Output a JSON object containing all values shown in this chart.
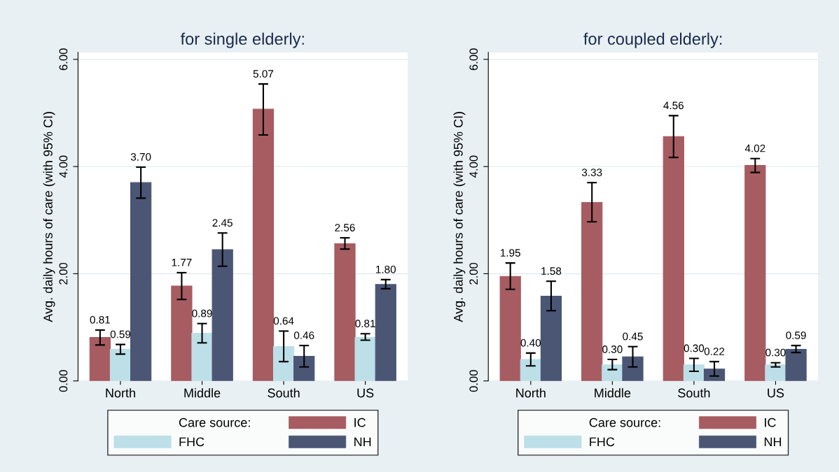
{
  "chart_data": [
    {
      "type": "bar",
      "title": "for single elderly:",
      "ylabel": "Avg. daily hours of care (with 95% CI)",
      "legend_title": "Care source:",
      "categories": [
        "North",
        "Middle",
        "South",
        "US"
      ],
      "ylim": [
        0,
        6.13
      ],
      "yticks": [
        {
          "value": 0,
          "label": "0.00"
        },
        {
          "value": 2,
          "label": "2.00"
        },
        {
          "value": 4,
          "label": "4.00"
        },
        {
          "value": 6,
          "label": "6.00"
        }
      ],
      "grid": "y",
      "legend": "bottom",
      "series": [
        {
          "name": "IC",
          "color": "#a65c61",
          "values": [
            0.81,
            1.77,
            5.07,
            2.56
          ],
          "value_labels": [
            "0.81",
            "1.77",
            "5.07",
            "2.56"
          ],
          "errors": [
            [
              0.67,
              0.95
            ],
            [
              1.52,
              2.02
            ],
            [
              4.59,
              5.54
            ],
            [
              2.46,
              2.67
            ]
          ]
        },
        {
          "name": "FHC",
          "color": "#bcdfe8",
          "values": [
            0.59,
            0.89,
            0.64,
            0.81
          ],
          "value_labels": [
            "0.59",
            "0.89",
            "0.64",
            "0.81"
          ],
          "errors": [
            [
              0.5,
              0.68
            ],
            [
              0.71,
              1.07
            ],
            [
              0.36,
              0.93
            ],
            [
              0.76,
              0.88
            ]
          ]
        },
        {
          "name": "NH",
          "color": "#4b5675",
          "values": [
            3.7,
            2.45,
            0.46,
            1.8
          ],
          "value_labels": [
            "3.70",
            "2.45",
            "0.46",
            "1.80"
          ],
          "errors": [
            [
              3.41,
              3.99
            ],
            [
              2.14,
              2.76
            ],
            [
              0.26,
              0.66
            ],
            [
              1.72,
              1.89
            ]
          ]
        }
      ]
    },
    {
      "type": "bar",
      "title": "for coupled elderly:",
      "ylabel": "Avg. daily hours of care (with 95% CI)",
      "legend_title": "Care source:",
      "categories": [
        "North",
        "Middle",
        "South",
        "US"
      ],
      "ylim": [
        0,
        6.13
      ],
      "yticks": [
        {
          "value": 0,
          "label": "0.00"
        },
        {
          "value": 2,
          "label": "2.00"
        },
        {
          "value": 4,
          "label": "4.00"
        },
        {
          "value": 6,
          "label": "6.00"
        }
      ],
      "grid": "y",
      "legend": "bottom",
      "series": [
        {
          "name": "IC",
          "color": "#a65c61",
          "values": [
            1.95,
            3.33,
            4.56,
            4.02
          ],
          "value_labels": [
            "1.95",
            "3.33",
            "4.56",
            "4.02"
          ],
          "errors": [
            [
              1.71,
              2.2
            ],
            [
              2.97,
              3.7
            ],
            [
              4.17,
              4.95
            ],
            [
              3.89,
              4.15
            ]
          ]
        },
        {
          "name": "FHC",
          "color": "#bcdfe8",
          "values": [
            0.4,
            0.3,
            0.3,
            0.3
          ],
          "value_labels": [
            "0.40",
            "0.30",
            "0.30",
            "0.30"
          ],
          "errors": [
            [
              0.28,
              0.52
            ],
            [
              0.21,
              0.4
            ],
            [
              0.18,
              0.42
            ],
            [
              0.26,
              0.34
            ]
          ]
        },
        {
          "name": "NH",
          "color": "#4b5675",
          "values": [
            1.58,
            0.45,
            0.22,
            0.59
          ],
          "value_labels": [
            "1.58",
            "0.45",
            "0.22",
            "0.59"
          ],
          "errors": [
            [
              1.31,
              1.86
            ],
            [
              0.26,
              0.64
            ],
            [
              0.09,
              0.36
            ],
            [
              0.53,
              0.66
            ]
          ]
        }
      ]
    }
  ]
}
